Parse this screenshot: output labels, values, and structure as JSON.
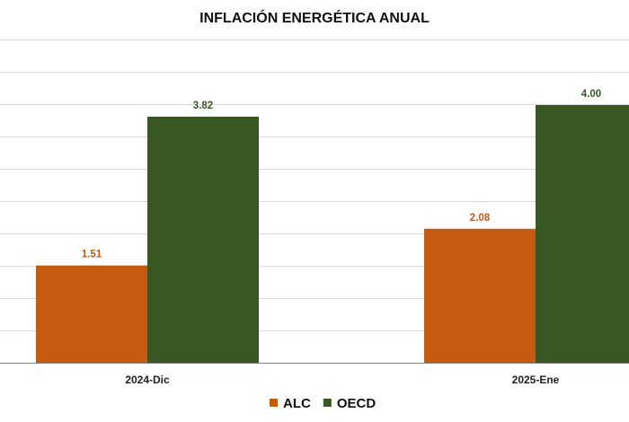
{
  "chart_data": {
    "type": "bar",
    "title": "INFLACIÓN ENERGÉTICA ANUAL",
    "categories": [
      "2024-Dic",
      "2025-Ene"
    ],
    "series": [
      {
        "name": "ALC",
        "values": [
          1.51,
          2.08
        ],
        "labels": [
          "1.51",
          "2.08"
        ],
        "color": "#C55A11"
      },
      {
        "name": "OECD",
        "values": [
          3.82,
          4.0
        ],
        "labels": [
          "3.82",
          "4.00"
        ],
        "color": "#385723"
      }
    ],
    "ylim": [
      0,
      4.0
    ],
    "grid": true,
    "legend_position": "bottom",
    "xlabel": "",
    "ylabel": ""
  }
}
